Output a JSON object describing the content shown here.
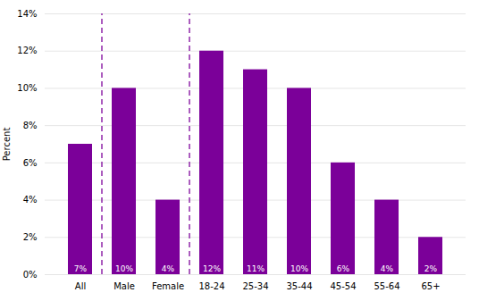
{
  "chart_data": {
    "type": "bar",
    "categories": [
      "All",
      "Male",
      "Female",
      "18-24",
      "25-34",
      "35-44",
      "45-54",
      "55-64",
      "65+"
    ],
    "values": [
      7,
      10,
      4,
      12,
      11,
      10,
      6,
      4,
      2
    ],
    "value_labels": [
      "7%",
      "10%",
      "4%",
      "12%",
      "11%",
      "10%",
      "6%",
      "4%",
      "2%"
    ],
    "data_labels": true,
    "color": "#7B0099",
    "ylabel": "Percent",
    "ylim": [
      0,
      14
    ],
    "yticks": [
      {
        "value": 0,
        "label": "0%"
      },
      {
        "value": 2,
        "label": "2%"
      },
      {
        "value": 4,
        "label": "4%"
      },
      {
        "value": 6,
        "label": "6%"
      },
      {
        "value": 8,
        "label": "8%"
      },
      {
        "value": 10,
        "label": "10%"
      },
      {
        "value": 12,
        "label": "12%"
      },
      {
        "value": 14,
        "label": "14%"
      }
    ],
    "grid": true,
    "separators": {
      "after": [
        "All",
        "Female"
      ],
      "color": "#7B0099",
      "line_style": "dashed"
    }
  }
}
